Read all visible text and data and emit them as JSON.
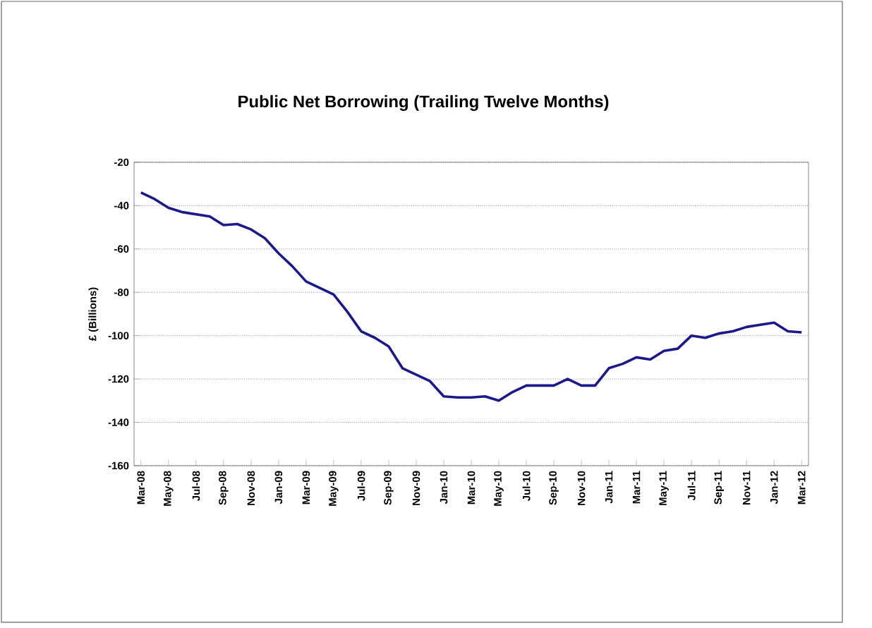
{
  "chart_data": {
    "type": "line",
    "title": "Public Net Borrowing (Trailing Twelve Months)",
    "ylabel": "£ (Billions)",
    "categories": [
      "Mar-08",
      null,
      "May-08",
      null,
      "Jul-08",
      null,
      "Sep-08",
      null,
      "Nov-08",
      null,
      "Jan-09",
      null,
      "Mar-09",
      null,
      "May-09",
      null,
      "Jul-09",
      null,
      "Sep-09",
      null,
      "Nov-09",
      null,
      "Jan-10",
      null,
      "Mar-10",
      null,
      "May-10",
      null,
      "Jul-10",
      null,
      "Sep-10",
      null,
      "Nov-10",
      null,
      "Jan-11",
      null,
      "Mar-11",
      null,
      "May-11",
      null,
      "Jul-11",
      null,
      "Sep-11",
      null,
      "Nov-11",
      null,
      "Jan-12",
      null,
      "Mar-12"
    ],
    "series": [
      {
        "color": "#1a1a8c",
        "values": [
          -34,
          -37,
          -41,
          -43,
          -44,
          -45,
          -49,
          -48.5,
          -51,
          -55,
          -62,
          -68,
          -75,
          -78,
          -81,
          -89,
          -98,
          -101,
          -105,
          -115,
          -118,
          -121,
          -128,
          -128.5,
          -128.5,
          -128,
          -130,
          -126,
          -123,
          -123,
          -123,
          -120,
          -123,
          -123,
          -115,
          -113,
          -110,
          -111,
          -107,
          -106,
          -100,
          -101,
          -99,
          -98,
          -96,
          -95,
          -94,
          -98,
          -98.5
        ]
      }
    ],
    "ylim": [
      -160,
      -20
    ],
    "yticks": [
      -160,
      -140,
      -120,
      -100,
      -80,
      -60,
      -40,
      -20
    ],
    "grid": "y",
    "marker": "none",
    "line_style": "solid"
  }
}
